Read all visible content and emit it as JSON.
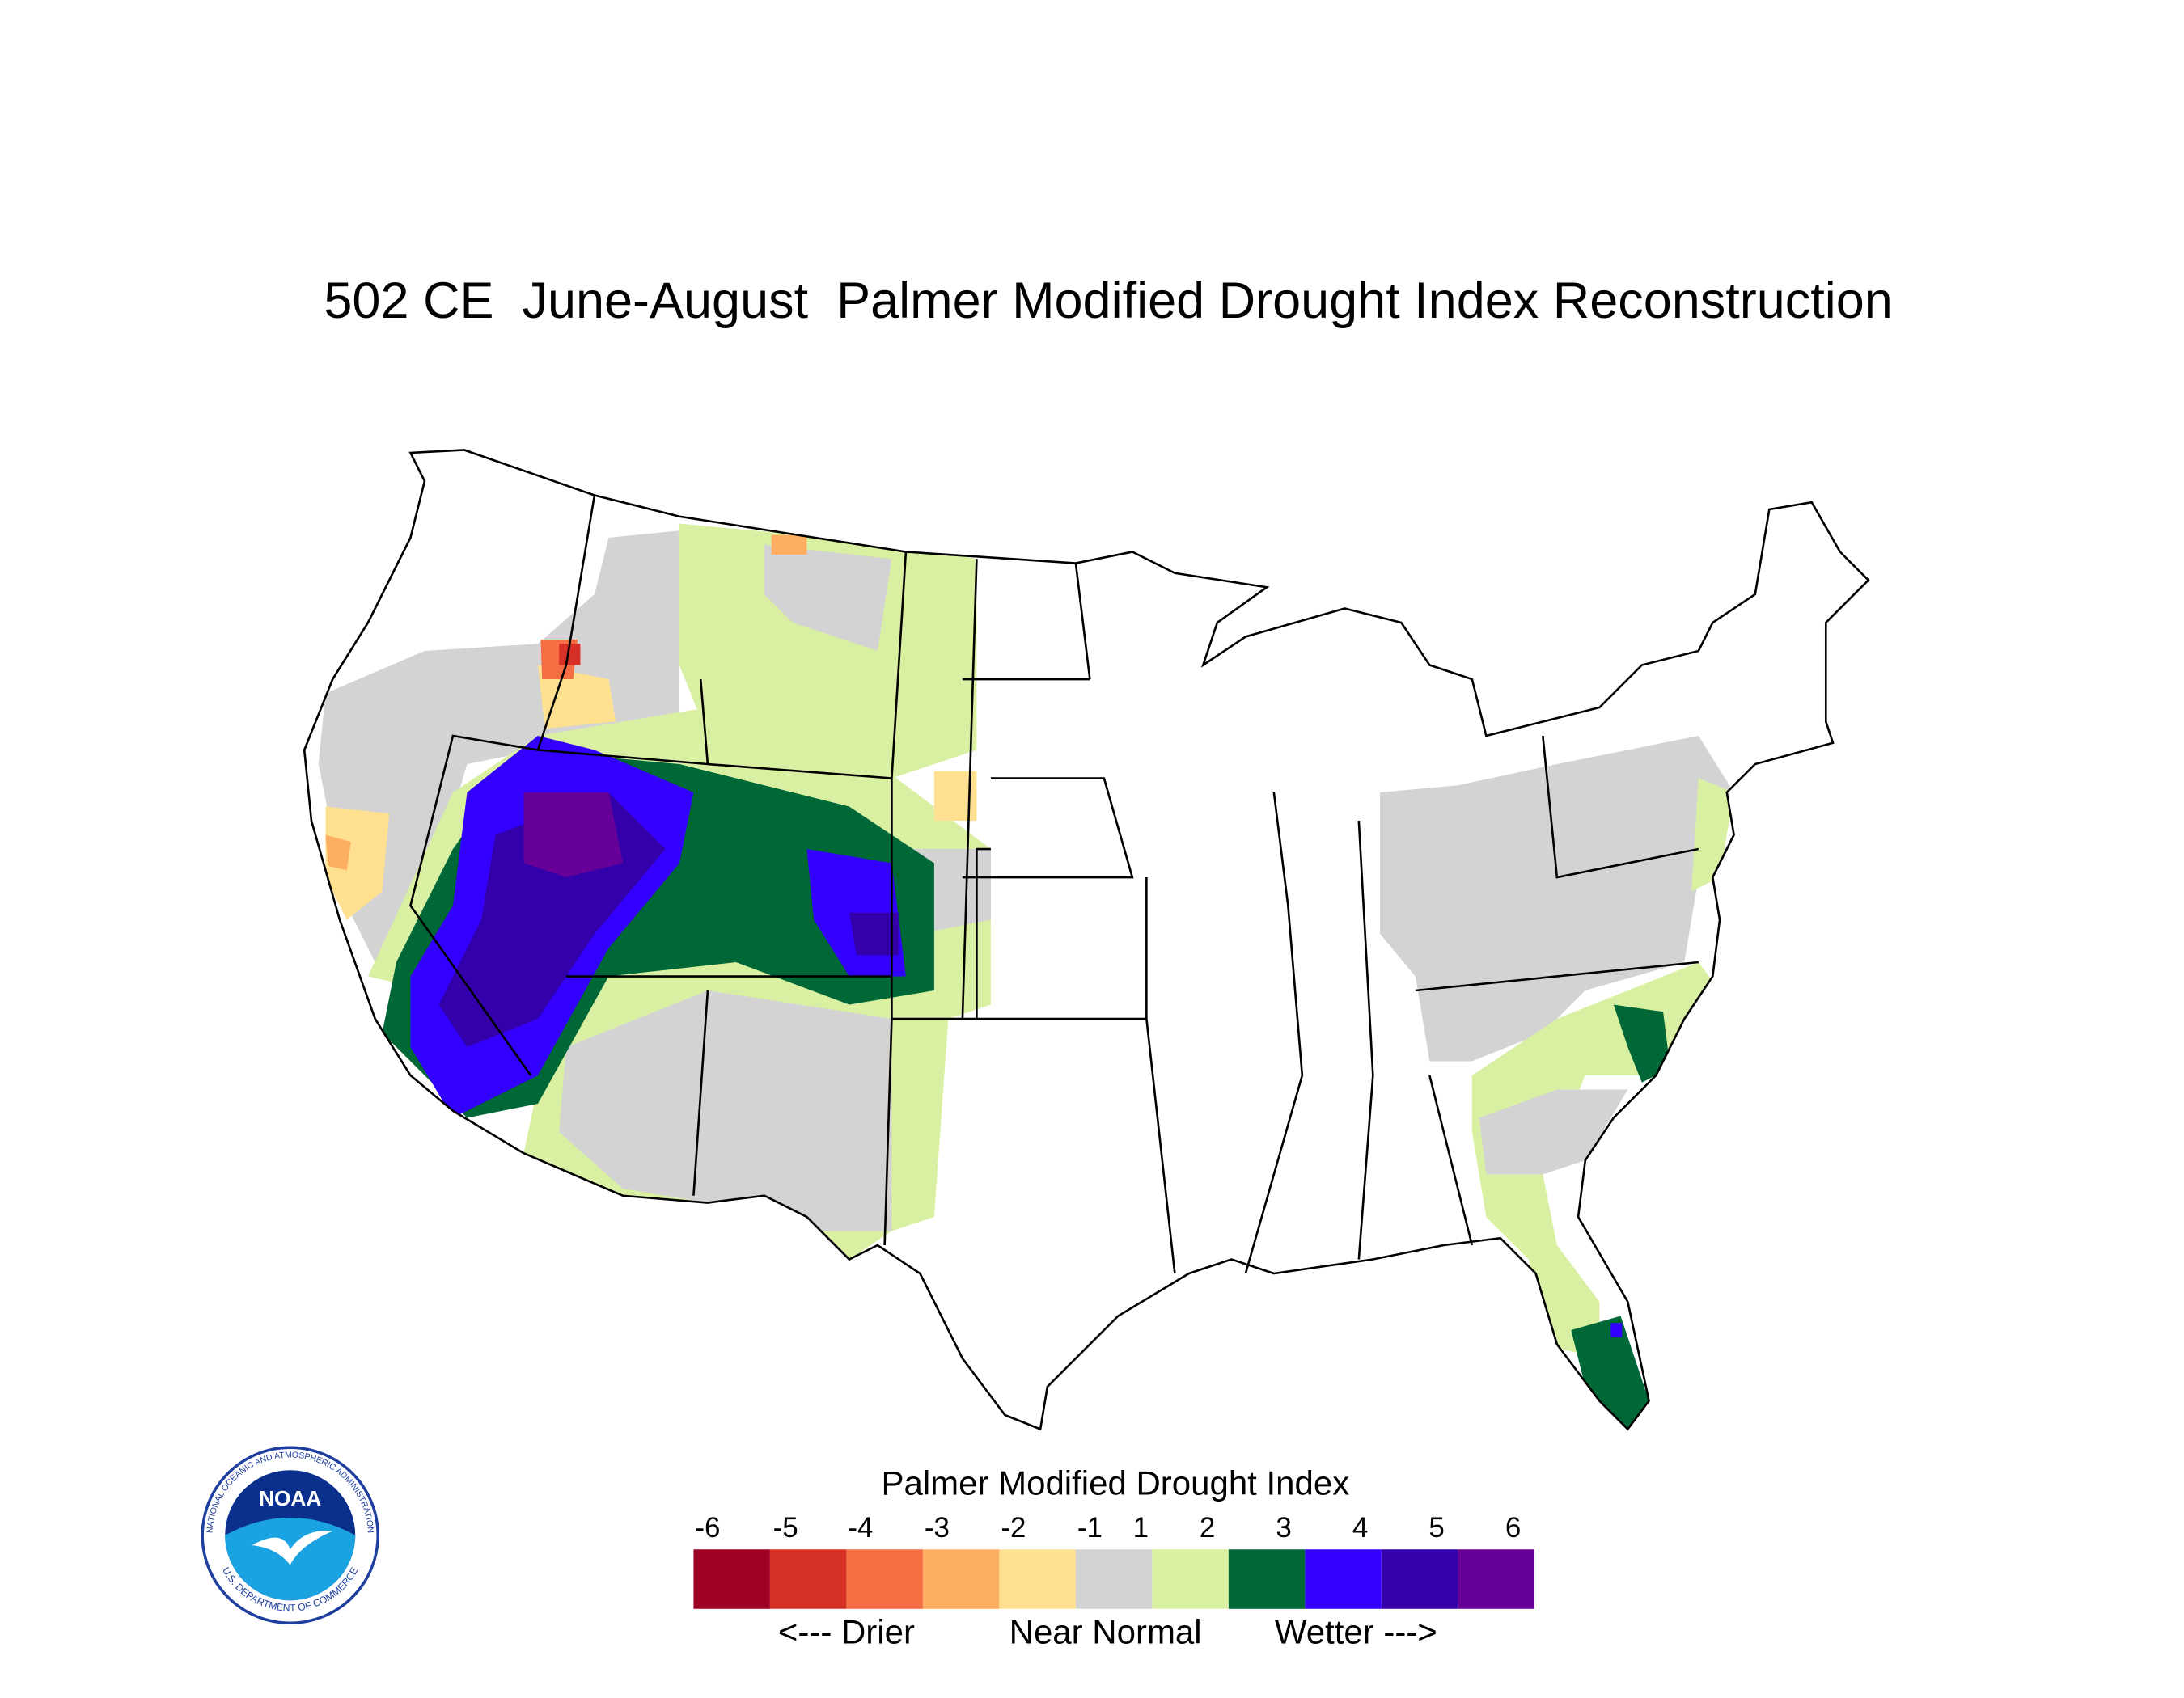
{
  "title": "502 CE  June-August  Palmer Modified Drought Index Reconstruction",
  "legend": {
    "title": "Palmer Modified Drought Index",
    "ticks": [
      -6,
      -5,
      -4,
      -3,
      -2,
      -1,
      1,
      2,
      3,
      4,
      5,
      6
    ],
    "colors": [
      "#9e0124",
      "#d73027",
      "#f46d43",
      "#fdae61",
      "#fee090",
      "#d3d3d3",
      "#d9f0a3",
      "#006837",
      "#3300ff",
      "#3300aa",
      "#660099"
    ],
    "labels": [
      "<--- Drier",
      "Near Normal",
      "Wetter --->"
    ]
  },
  "logo": {
    "name": "NOAA",
    "agency": "NATIONAL OCEANIC AND ATMOSPHERIC ADMINISTRATION",
    "department": "U.S. DEPARTMENT OF COMMERCE"
  }
}
